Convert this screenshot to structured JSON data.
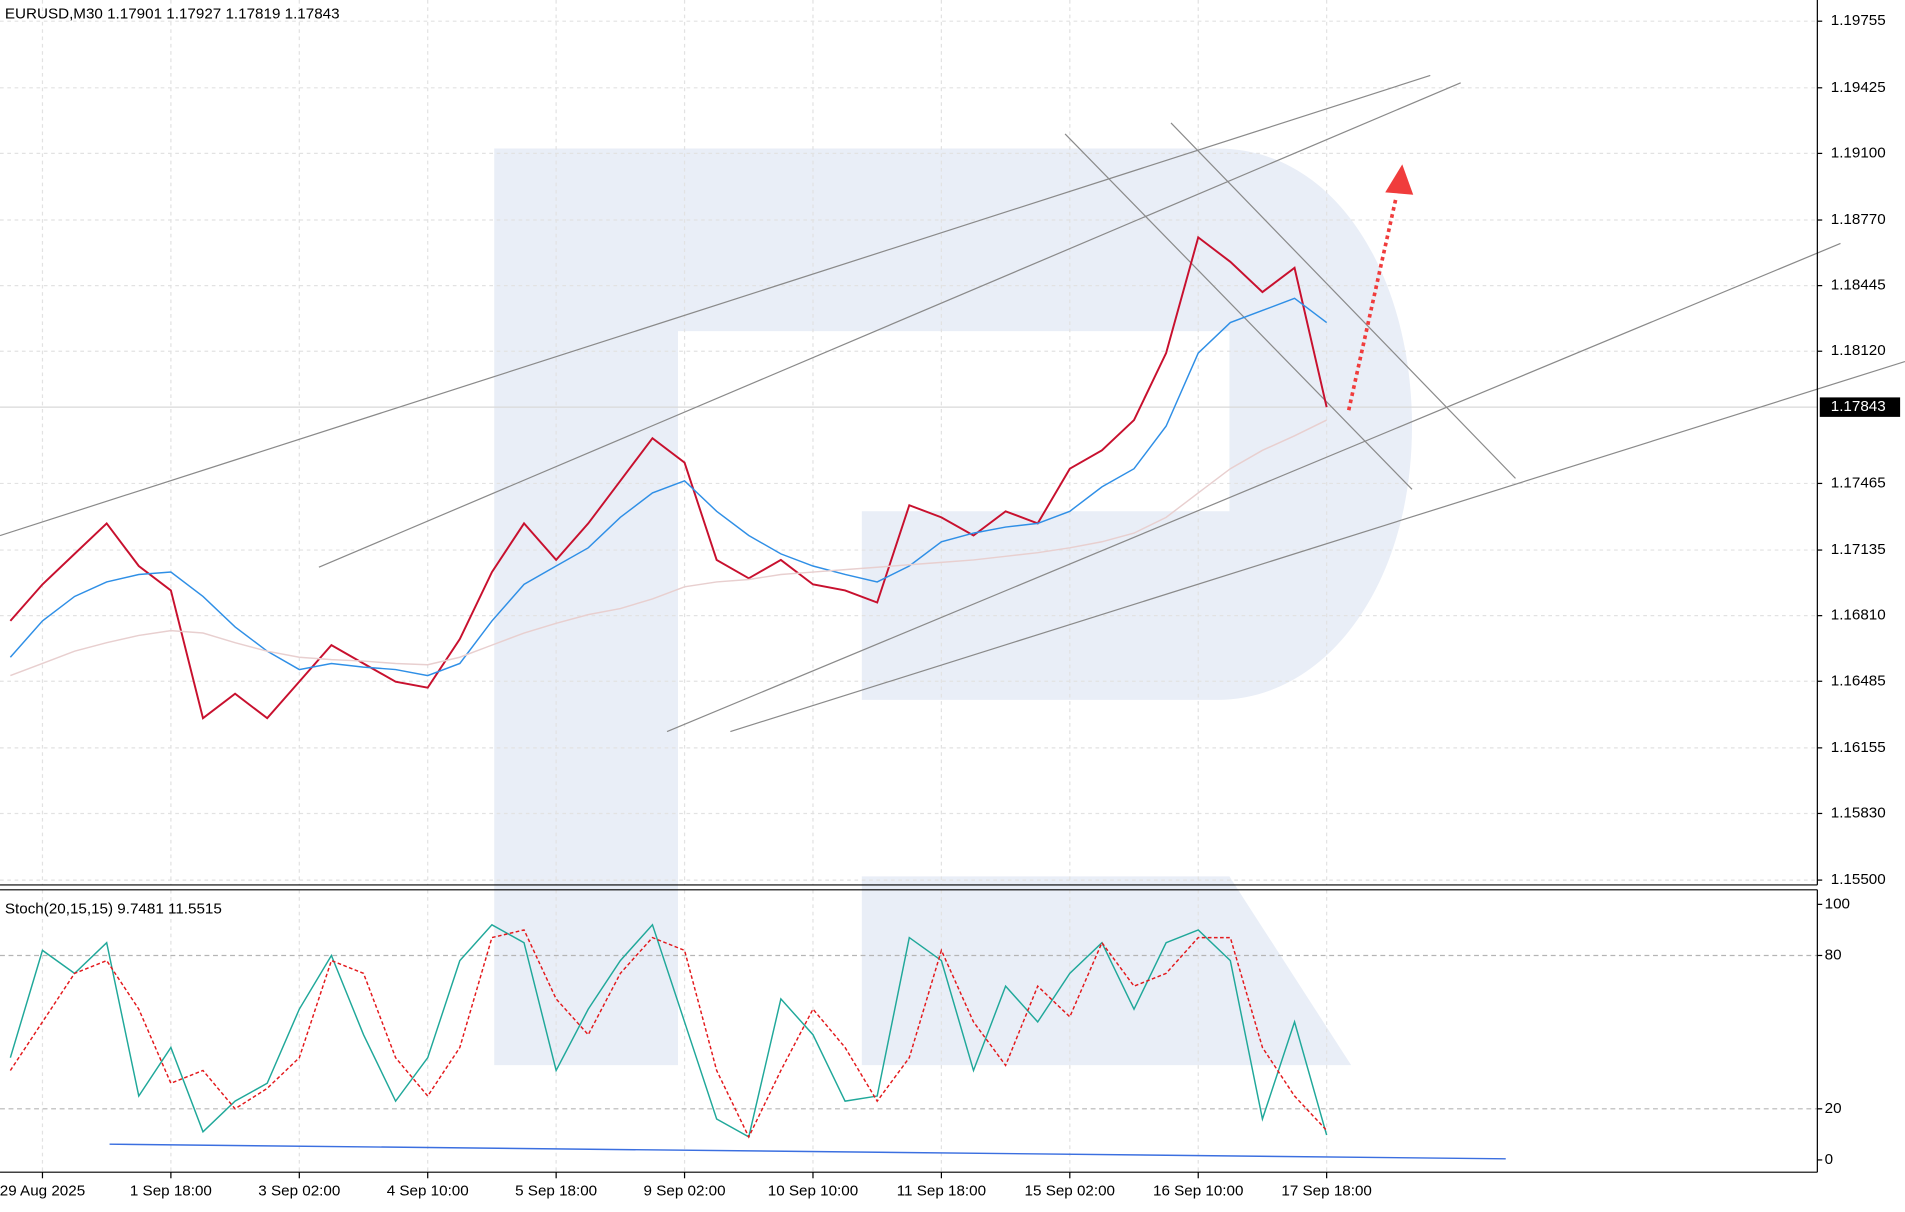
{
  "chart_data": [
    {
      "type": "line",
      "title": "EURUSD,M30  1.17901 1.17927 1.17819 1.17843",
      "categories": [
        null,
        "29 Aug 2025",
        null,
        null,
        null,
        "1 Sep 18:00",
        null,
        null,
        null,
        "3 Sep 02:00",
        null,
        null,
        null,
        "4 Sep 10:00",
        null,
        null,
        null,
        "5 Sep 18:00",
        null,
        null,
        null,
        "9 Sep 02:00",
        null,
        null,
        null,
        "10 Sep 10:00",
        null,
        null,
        null,
        "11 Sep 18:00",
        null,
        null,
        null,
        "15 Sep 02:00",
        null,
        null,
        null,
        "16 Sep 10:00",
        null,
        null,
        null,
        "17 Sep 18:00"
      ],
      "series": [
        {
          "color": "#c8102e",
          "values": [
            1.16784,
            1.16965,
            1.17116,
            1.17267,
            1.17056,
            1.16935,
            1.16302,
            1.16423,
            1.16302,
            1.16483,
            1.16664,
            1.16573,
            1.16483,
            1.16453,
            1.16694,
            1.17026,
            1.17267,
            1.17086,
            1.17267,
            1.17478,
            1.17689,
            1.17568,
            1.17086,
            1.16995,
            1.17086,
            1.16965,
            1.16935,
            1.16875,
            1.17357,
            1.17297,
            1.17207,
            1.17327,
            1.17267,
            1.17538,
            1.17629,
            1.17779,
            1.18111,
            1.18684,
            1.18563,
            1.18413,
            1.18533,
            1.17843
          ]
        },
        {
          "color": "#2f8fe6",
          "values": [
            1.16604,
            1.16784,
            1.16905,
            1.16977,
            1.17014,
            1.17026,
            1.16905,
            1.16754,
            1.16634,
            1.16543,
            1.16573,
            1.16555,
            1.16543,
            1.16513,
            1.16573,
            1.16784,
            1.16965,
            1.17056,
            1.17146,
            1.17297,
            1.17418,
            1.17478,
            1.17327,
            1.17207,
            1.17116,
            1.17056,
            1.17014,
            1.16977,
            1.17056,
            1.17176,
            1.17219,
            1.17249,
            1.17267,
            1.17327,
            1.17448,
            1.17538,
            1.17749,
            1.18111,
            1.18262,
            1.18322,
            1.18382,
            1.18262
          ]
        },
        {
          "color": "#e8cfcf",
          "values": [
            1.16513,
            1.16573,
            1.16634,
            1.16676,
            1.16712,
            1.16736,
            1.16724,
            1.16676,
            1.16634,
            1.16604,
            1.16592,
            1.16585,
            1.16573,
            1.16567,
            1.16604,
            1.16664,
            1.16724,
            1.16772,
            1.16815,
            1.16845,
            1.16893,
            1.16953,
            1.16977,
            1.16989,
            1.17014,
            1.17026,
            1.17038,
            1.1705,
            1.17062,
            1.17074,
            1.17086,
            1.17104,
            1.17122,
            1.17146,
            1.17176,
            1.17219,
            1.17297,
            1.17418,
            1.17538,
            1.17629,
            1.17701,
            1.17779
          ]
        }
      ],
      "current_price": 1.17843,
      "ylim": [
        1.15476,
        1.1986
      ],
      "yticks": [
        1.19755,
        1.19425,
        {
          "value": 1.191,
          "label": "1.19100"
        },
        {
          "value": 1.1877,
          "label": "1.18770"
        },
        1.18445,
        {
          "value": 1.1812,
          "label": "1.18120"
        },
        1.17465,
        1.17135,
        {
          "value": 1.1681,
          "label": "1.16810"
        },
        1.16485,
        1.16155,
        {
          "value": 1.1583,
          "label": "1.15830"
        },
        {
          "value": 1.155,
          "label": "1.15500"
        }
      ],
      "grid": true
    },
    {
      "type": "line",
      "title": "Stoch(20,15,15) 9.7481 11.5515",
      "series": [
        {
          "color": "#20a89a",
          "values": [
            40,
            82,
            73,
            85,
            25,
            44,
            11,
            23,
            30,
            59,
            80,
            49,
            23,
            40,
            78,
            92,
            85,
            35,
            59,
            78,
            92,
            54,
            16,
            9,
            63,
            49,
            23,
            25,
            87,
            78,
            35,
            68,
            54,
            73,
            85,
            59,
            85,
            90,
            78,
            16,
            54,
            9.7481
          ]
        },
        {
          "color": "#e3191c",
          "dashed": true,
          "values": [
            35,
            54,
            73,
            78,
            59,
            30,
            35,
            20,
            28,
            40,
            78,
            73,
            40,
            25,
            44,
            87,
            90,
            63,
            49,
            73,
            87,
            82,
            35,
            9,
            35,
            59,
            44,
            23,
            40,
            82,
            54,
            37,
            68,
            56,
            85,
            68,
            73,
            87,
            87,
            44,
            25,
            11.5515
          ]
        }
      ],
      "ylim": [
        -4.8,
        105.7
      ],
      "yticks": [
        100,
        80,
        20,
        0
      ],
      "levels": [
        80,
        20
      ]
    }
  ]
}
